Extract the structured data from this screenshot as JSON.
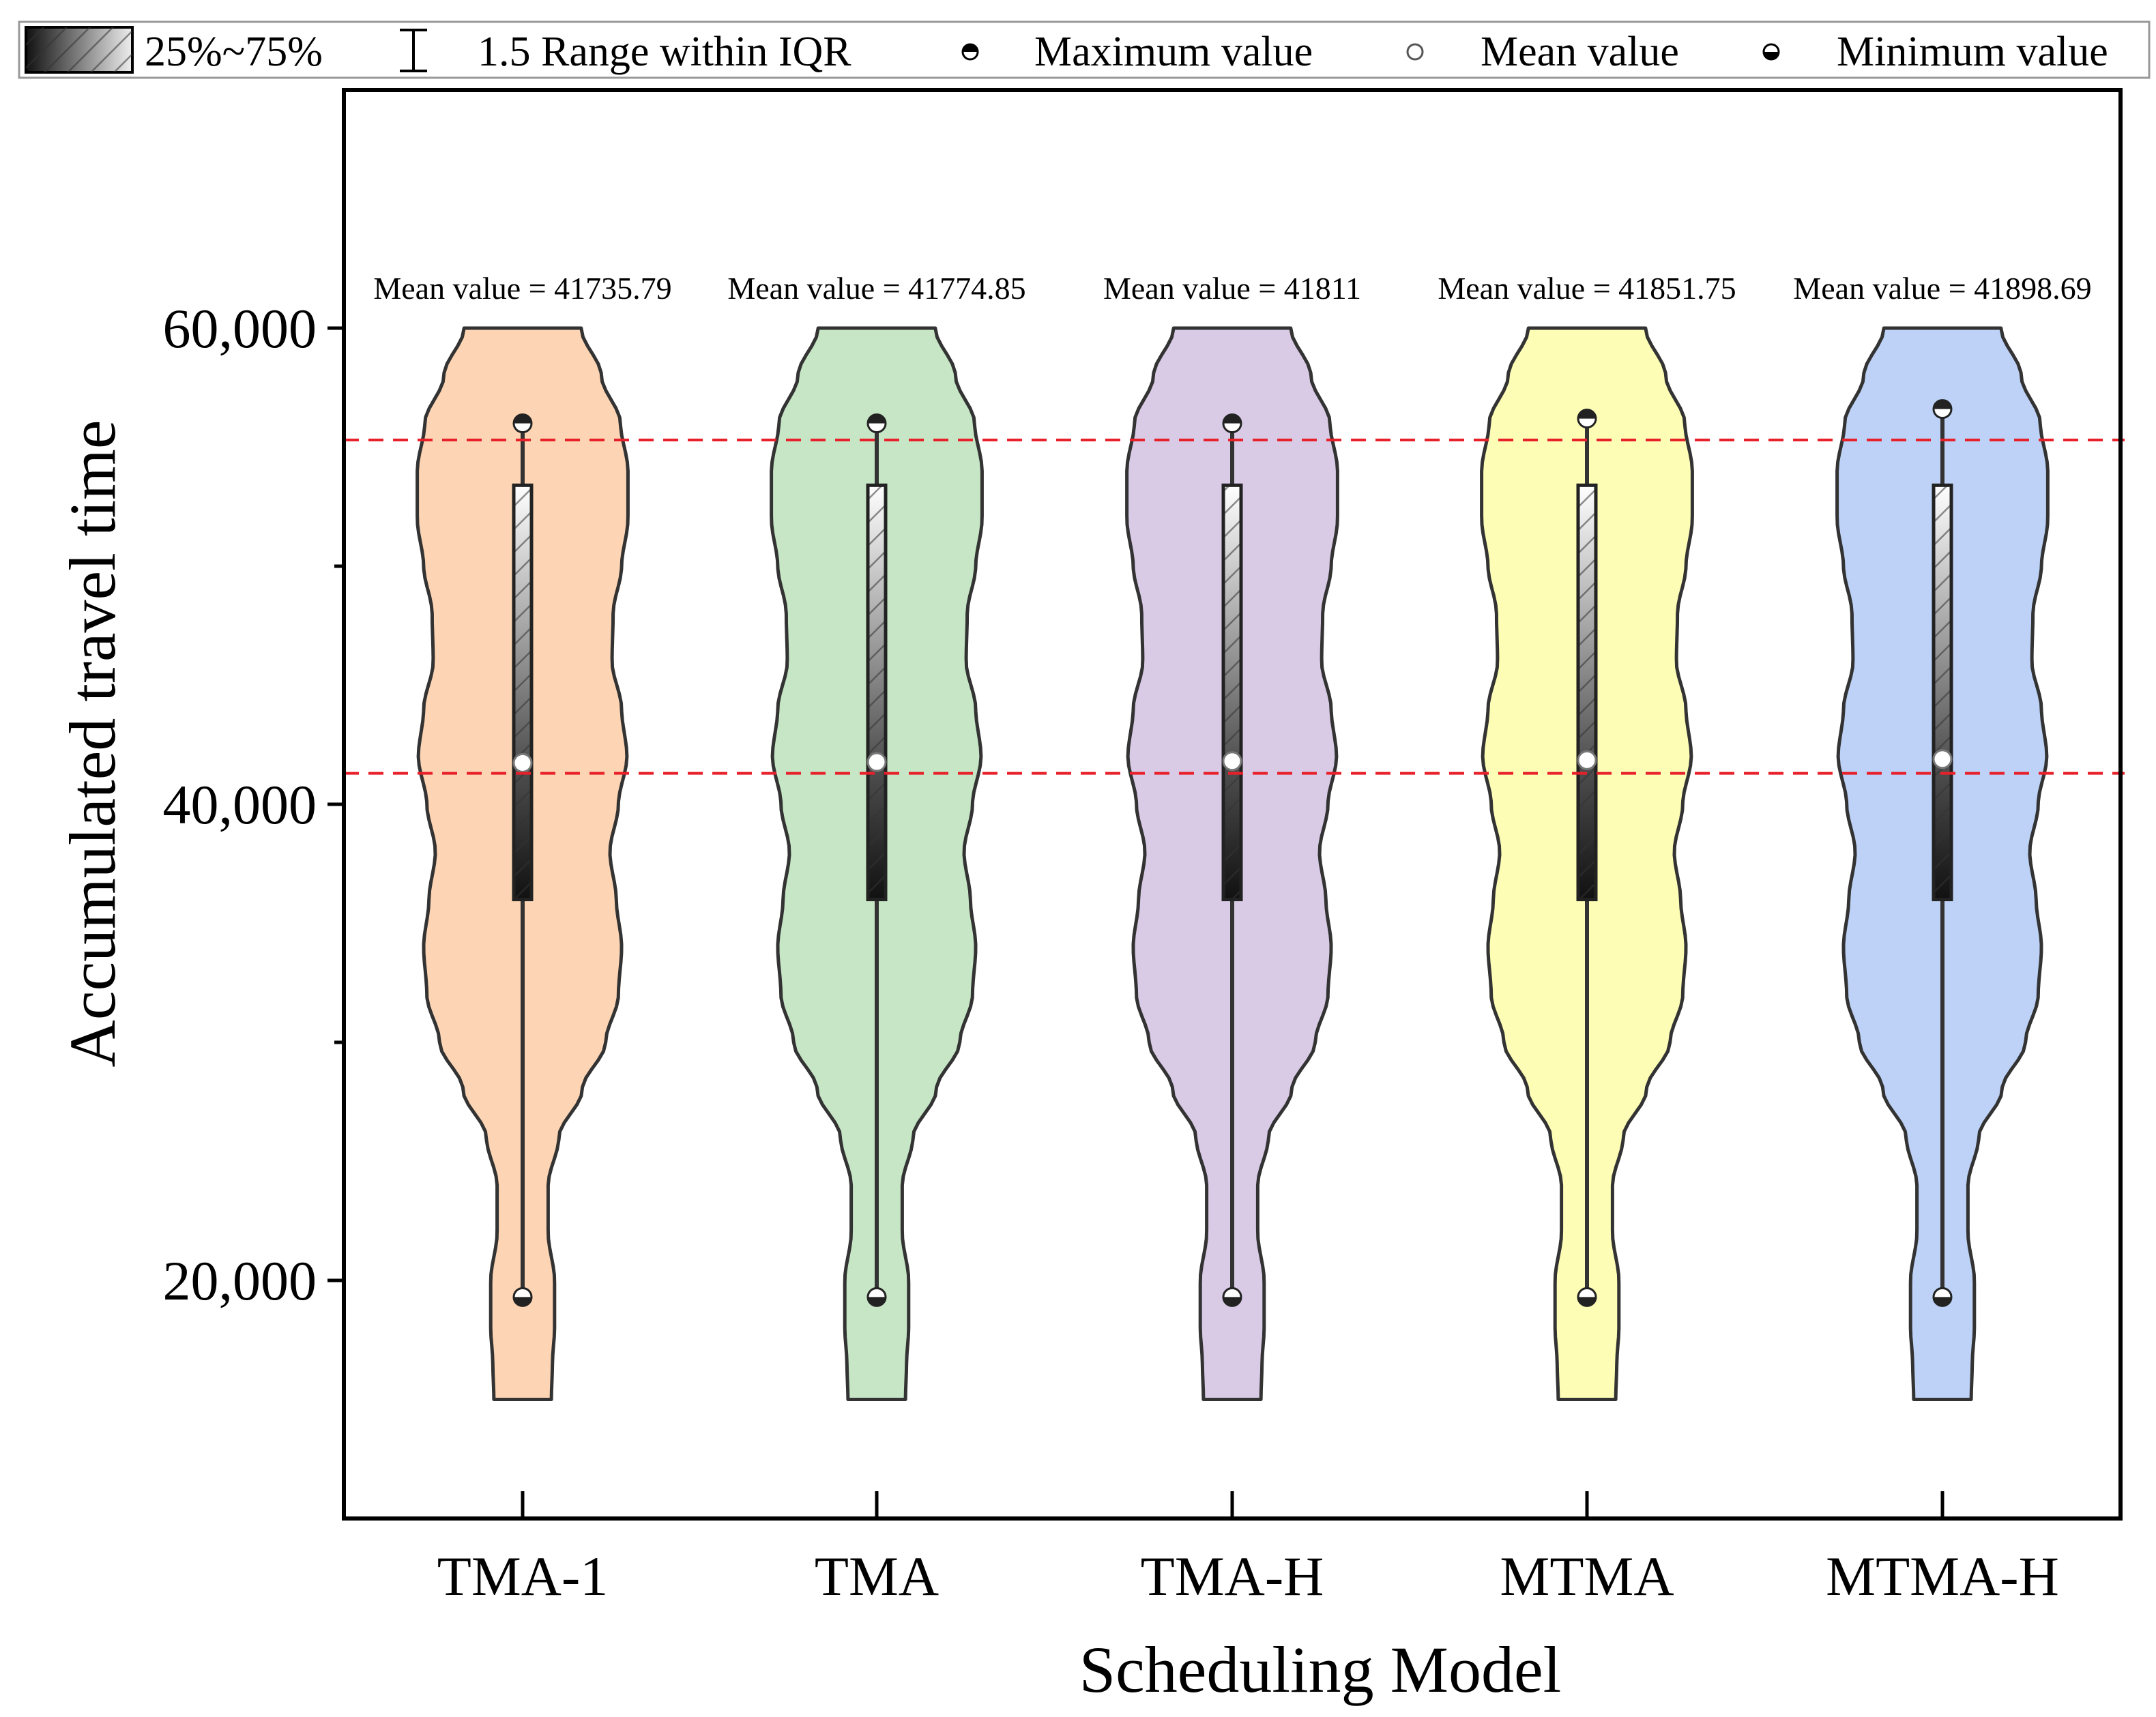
{
  "chart_data": {
    "type": "violin",
    "xlabel": "Scheduling Model",
    "ylabel": "Accumulated travel time",
    "ylim": [
      10000,
      70000
    ],
    "yticks": [
      20000,
      40000,
      60000
    ],
    "ytick_labels": [
      "20,000",
      "40,000",
      "60,000"
    ],
    "minor_yticks": [
      30000,
      50000
    ],
    "reference_lines": [
      55300,
      41300
    ],
    "reference_line_color": "#e8202a",
    "legend": {
      "box_label": "25%~75%",
      "range_label": "1.5 Range within IQR",
      "max_label": "Maximum value",
      "mean_label": "Mean value",
      "min_label": "Minimum value"
    },
    "series": [
      {
        "name": "TMA-1",
        "color": "#fdd5b4",
        "mean": 41735.79,
        "mean_text": "Mean value = 41735.79",
        "q1": 36000,
        "q3": 53400,
        "whisker_low": 19300,
        "whisker_high": 56000
      },
      {
        "name": "TMA",
        "color": "#c6e6c6",
        "mean": 41774.85,
        "mean_text": "Mean value = 41774.85",
        "q1": 36000,
        "q3": 53400,
        "whisker_low": 19300,
        "whisker_high": 56000
      },
      {
        "name": "TMA-H",
        "color": "#d9cbe6",
        "mean": 41811,
        "mean_text": "Mean value = 41811",
        "q1": 36000,
        "q3": 53400,
        "whisker_low": 19300,
        "whisker_high": 56000
      },
      {
        "name": "MTMA",
        "color": "#fdfdb6",
        "mean": 41851.75,
        "mean_text": "Mean value = 41851.75",
        "q1": 36000,
        "q3": 53400,
        "whisker_low": 19300,
        "whisker_high": 56200
      },
      {
        "name": "MTMA-H",
        "color": "#bdd2f6",
        "mean": 41898.69,
        "mean_text": "Mean value = 41898.69",
        "q1": 36000,
        "q3": 53400,
        "whisker_low": 19300,
        "whisker_high": 56600
      }
    ],
    "violin_range": [
      15000,
      60000
    ],
    "violin_profile": [
      [
        15000,
        0.27
      ],
      [
        16500,
        0.28
      ],
      [
        18000,
        0.3
      ],
      [
        20000,
        0.3
      ],
      [
        22000,
        0.24
      ],
      [
        24000,
        0.24
      ],
      [
        26000,
        0.34
      ],
      [
        28000,
        0.56
      ],
      [
        30000,
        0.78
      ],
      [
        32000,
        0.9
      ],
      [
        34000,
        0.93
      ],
      [
        36000,
        0.88
      ],
      [
        38000,
        0.82
      ],
      [
        40000,
        0.9
      ],
      [
        42000,
        0.98
      ],
      [
        44000,
        0.93
      ],
      [
        46000,
        0.84
      ],
      [
        48000,
        0.85
      ],
      [
        50000,
        0.93
      ],
      [
        52000,
        0.99
      ],
      [
        54000,
        0.99
      ],
      [
        56000,
        0.92
      ],
      [
        58000,
        0.74
      ],
      [
        60000,
        0.55
      ]
    ]
  }
}
